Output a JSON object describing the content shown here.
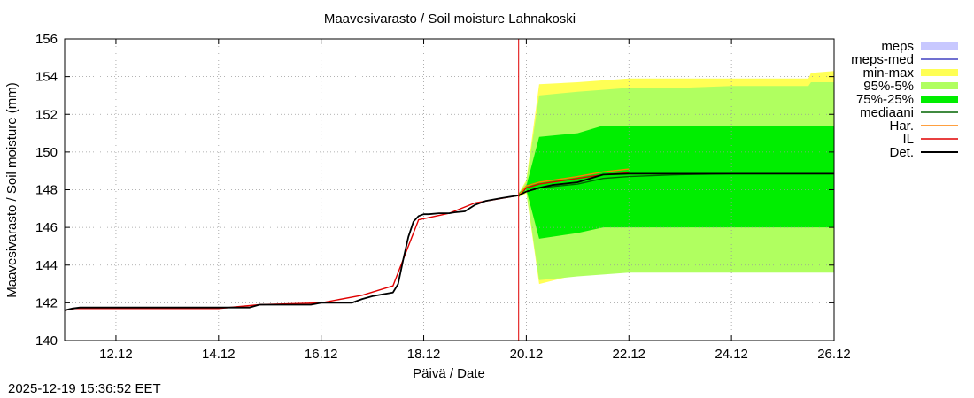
{
  "chart_data": {
    "type": "area",
    "title": "Maavesivarasto / Soil moisture   Lahnakoski",
    "xlabel": "Päivä / Date",
    "ylabel": "Maavesivarasto / Soil moisture (mm)",
    "x_unit": "days since 11.12 00:00",
    "xlim": [
      0,
      15
    ],
    "ylim": [
      140,
      156
    ],
    "yticks": [
      140,
      142,
      144,
      146,
      148,
      150,
      152,
      154,
      156
    ],
    "xticks": [
      {
        "x": 1,
        "label": "12.12"
      },
      {
        "x": 3,
        "label": "14.12"
      },
      {
        "x": 5,
        "label": "16.12"
      },
      {
        "x": 7,
        "label": "18.12"
      },
      {
        "x": 9,
        "label": "20.12"
      },
      {
        "x": 11,
        "label": "22.12"
      },
      {
        "x": 13,
        "label": "24.12"
      },
      {
        "x": 15,
        "label": "26.12"
      }
    ],
    "grid": true,
    "legend_position": "outside-right",
    "legend": [
      {
        "key": "meps",
        "label": "meps",
        "style": "fill",
        "color": "#c8c8ff"
      },
      {
        "key": "meps_med",
        "label": "meps-med",
        "style": "line",
        "color": "#4040c0"
      },
      {
        "key": "minmax",
        "label": "min-max",
        "style": "fill",
        "color": "#ffff55"
      },
      {
        "key": "p95_5",
        "label": "95%-5%",
        "style": "fill",
        "color": "#b0ff60"
      },
      {
        "key": "p75_25",
        "label": "75%-25%",
        "style": "fill",
        "color": "#00ee00"
      },
      {
        "key": "median",
        "label": "mediaani",
        "style": "line",
        "color": "#006400"
      },
      {
        "key": "har",
        "label": "Har.",
        "style": "line",
        "color": "#ff8000"
      },
      {
        "key": "il",
        "label": "IL",
        "style": "line",
        "color": "#e00000"
      },
      {
        "key": "det",
        "label": "Det.",
        "style": "line",
        "color": "#000000"
      }
    ],
    "current_time_x": 8.85,
    "bands": {
      "minmax": {
        "x": [
          8.85,
          9.0,
          9.25,
          10.0,
          11.0,
          12.0,
          13.0,
          14.0,
          14.5,
          14.55,
          15.0
        ],
        "upper": [
          147.8,
          148.5,
          153.6,
          153.7,
          153.9,
          153.9,
          153.9,
          153.9,
          153.9,
          154.2,
          154.3
        ],
        "lower": [
          147.6,
          147.8,
          143.0,
          143.5,
          143.7,
          143.7,
          143.7,
          143.7,
          143.7,
          143.7,
          143.7
        ]
      },
      "p95_5": {
        "x": [
          8.85,
          9.0,
          9.25,
          10.0,
          11.0,
          12.0,
          13.0,
          14.0,
          14.5,
          14.55,
          15.0
        ],
        "upper": [
          147.8,
          148.4,
          153.0,
          153.2,
          153.4,
          153.4,
          153.5,
          153.5,
          153.5,
          153.7,
          153.7
        ],
        "lower": [
          147.6,
          147.9,
          143.2,
          143.4,
          143.6,
          143.6,
          143.6,
          143.6,
          143.6,
          143.6,
          143.6
        ]
      },
      "p75_25": {
        "x": [
          8.85,
          9.0,
          9.25,
          10.0,
          10.5,
          11.0,
          12.0,
          13.0,
          14.0,
          15.0
        ],
        "upper": [
          147.8,
          148.2,
          150.8,
          151.0,
          151.4,
          151.4,
          151.4,
          151.4,
          151.4,
          151.4
        ],
        "lower": [
          147.6,
          148.0,
          145.4,
          145.7,
          146.0,
          146.0,
          146.0,
          146.0,
          146.0,
          146.0
        ]
      }
    },
    "series": [
      {
        "key": "median",
        "name": "mediaani",
        "x": [
          8.85,
          9.0,
          9.25,
          10.0,
          10.5,
          11.0,
          12.0,
          13.0,
          14.0,
          15.0
        ],
        "values": [
          147.7,
          147.9,
          148.1,
          148.3,
          148.6,
          148.7,
          148.8,
          148.85,
          148.85,
          148.85
        ]
      },
      {
        "key": "har",
        "name": "Har.",
        "x": [
          8.85,
          9.0,
          9.25,
          10.0,
          10.5,
          11.0
        ],
        "values": [
          147.7,
          148.2,
          148.4,
          148.7,
          148.95,
          149.1
        ]
      },
      {
        "key": "il",
        "name": "IL",
        "x": [
          0,
          0.2,
          3.0,
          3.8,
          5.0,
          5.8,
          6.4,
          6.9,
          7.5,
          8.0,
          8.85,
          9.0,
          9.25,
          10.0,
          10.5,
          11.0
        ],
        "values": [
          141.6,
          141.7,
          141.7,
          141.9,
          142.0,
          142.4,
          142.9,
          146.4,
          146.75,
          147.3,
          147.7,
          148.1,
          148.3,
          148.6,
          148.8,
          148.9
        ]
      },
      {
        "key": "det",
        "name": "Det.",
        "x": [
          0,
          0.15,
          0.3,
          3.0,
          3.6,
          3.8,
          4.8,
          5.0,
          5.6,
          5.8,
          6.0,
          6.2,
          6.4,
          6.5,
          6.6,
          6.7,
          6.8,
          6.9,
          7.0,
          7.1,
          7.3,
          7.5,
          7.6,
          7.8,
          8.0,
          8.2,
          8.5,
          8.85,
          9.0,
          9.25,
          9.5,
          10.0,
          10.5,
          11.0,
          12.0,
          13.0,
          14.0,
          15.0
        ],
        "values": [
          141.6,
          141.7,
          141.75,
          141.75,
          141.75,
          141.9,
          141.9,
          142.0,
          142.0,
          142.2,
          142.35,
          142.45,
          142.55,
          143.0,
          144.3,
          145.5,
          146.3,
          146.6,
          146.7,
          146.7,
          146.75,
          146.75,
          146.8,
          146.85,
          147.2,
          147.4,
          147.55,
          147.7,
          147.9,
          148.1,
          148.25,
          148.4,
          148.8,
          148.85,
          148.85,
          148.85,
          148.85,
          148.85
        ]
      }
    ]
  },
  "timestamp": "2025-12-19 15:36:52 EET"
}
